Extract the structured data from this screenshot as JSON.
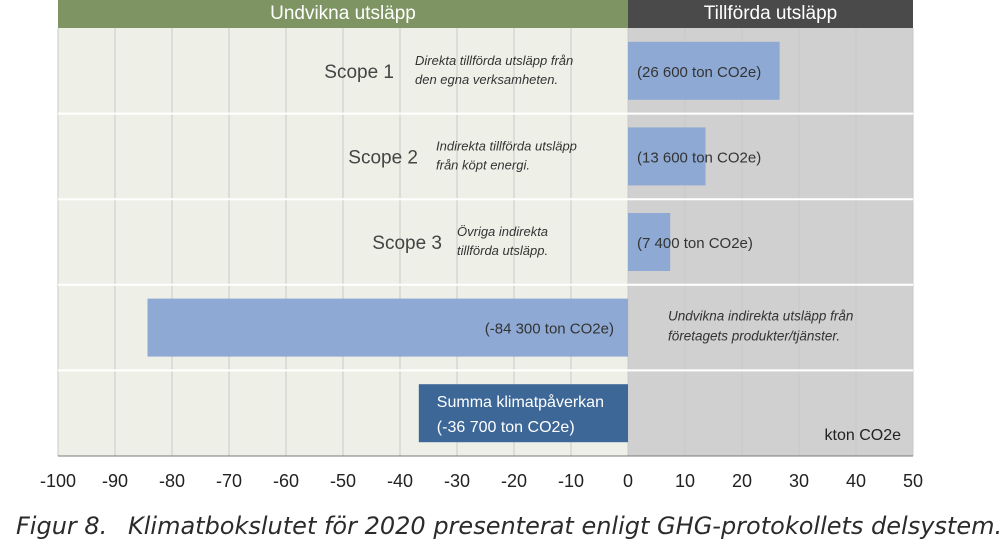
{
  "header": {
    "left_label": "Undvikna utsläpp",
    "right_label": "Tillförda utsläpp"
  },
  "colors": {
    "header_left": "#7e9462",
    "header_right": "#4a4a4a",
    "panel_left": "#eef0e8",
    "panel_right": "#d0d0d0",
    "bar": "#8eaad4",
    "bar_total": "#3d6796",
    "grid": "#c9c9c9",
    "row_separator": "#ffffff"
  },
  "chart_data": {
    "type": "bar",
    "orientation": "horizontal",
    "xlim": [
      -100,
      50
    ],
    "x_ticks": [
      "-100",
      "-90",
      "-80",
      "-70",
      "-60",
      "-50",
      "-40",
      "-30",
      "-20",
      "-10",
      "0",
      "10",
      "20",
      "30",
      "40",
      "50"
    ],
    "unit_label": "kton CO2e",
    "grid": true,
    "rows": [
      {
        "name": "Scope 1",
        "value": 26.6,
        "value_label": "(26 600 ton CO2e)",
        "description": [
          "Direkta tillförda utsläpp från",
          "den egna verksamheten."
        ]
      },
      {
        "name": "Scope 2",
        "value": 13.6,
        "value_label": "(13 600 ton CO2e)",
        "description": [
          "Indirekta tillförda utsläpp",
          "från köpt energi."
        ]
      },
      {
        "name": "Scope 3",
        "value": 7.4,
        "value_label": "(7 400 ton CO2e)",
        "description": [
          "Övriga indirekta",
          "tillförda utsläpp."
        ]
      },
      {
        "name": "",
        "value": -84.3,
        "value_label": "(-84 300 ton CO2e)",
        "description": [
          "Undvikna indirekta utsläpp från",
          "företagets produkter/tjänster."
        ]
      },
      {
        "name": "Summa klimatpåverkan",
        "value": -36.7,
        "value_label": "(-36 700 ton CO2e)",
        "description": []
      }
    ]
  },
  "caption": {
    "number": "Figur 8.",
    "text": "Klimatbokslutet för 2020 presenterat enligt GHG-protokollets delsystem."
  }
}
